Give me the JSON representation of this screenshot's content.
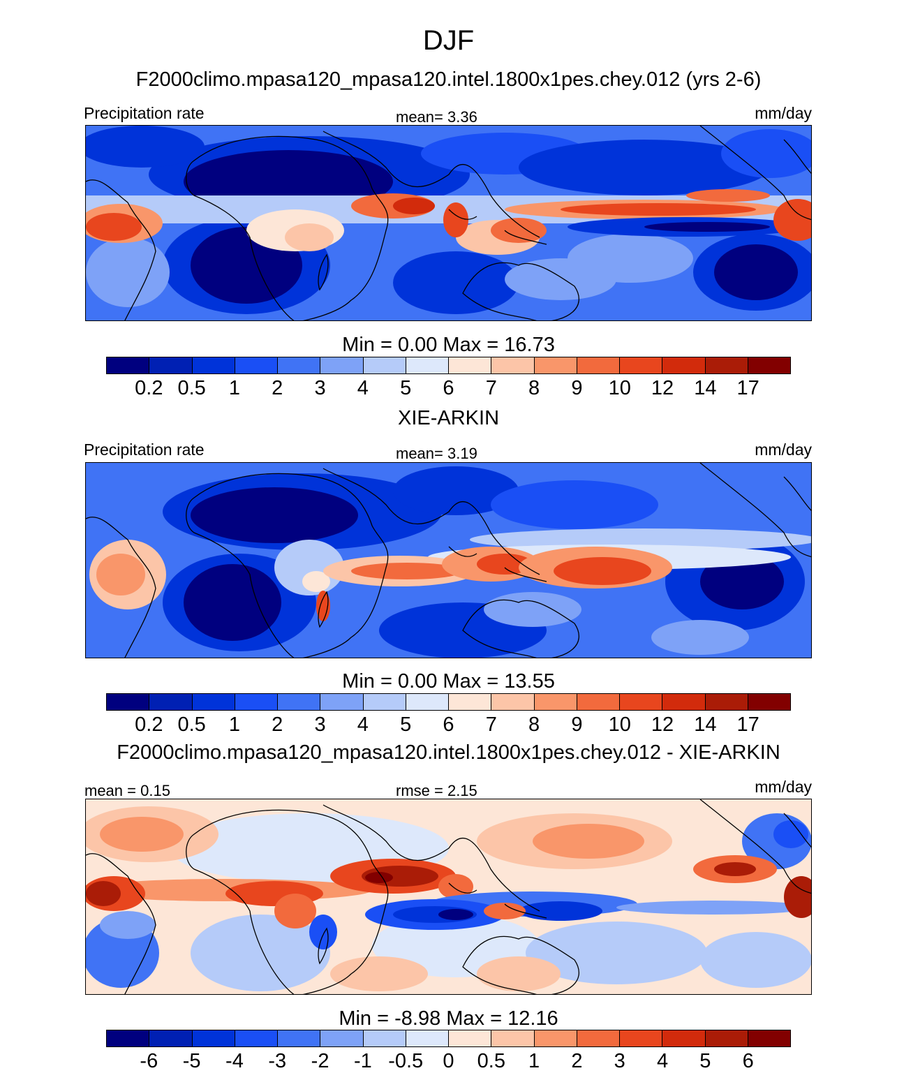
{
  "figure": {
    "season_title": "DJF"
  },
  "colors": {
    "precip_scale": [
      "#00007f",
      "#0020b3",
      "#0033d9",
      "#1a4ff5",
      "#4073f5",
      "#7ea2f7",
      "#b5cbf9",
      "#dde8fb",
      "#fde6d7",
      "#fcc5a8",
      "#f9966a",
      "#f26a3d",
      "#e8461e",
      "#d22b0c",
      "#aa1c07",
      "#820000"
    ],
    "diff_scale": [
      "#00007f",
      "#0020b3",
      "#0033d9",
      "#1a4ff5",
      "#4073f5",
      "#7ea2f7",
      "#b5cbf9",
      "#dde8fb",
      "#fde6d7",
      "#fcc5a8",
      "#f9966a",
      "#f26a3d",
      "#e8461e",
      "#d22b0c",
      "#aa1c07",
      "#820000"
    ]
  },
  "panels": [
    {
      "title": "F2000climo.mpasa120_mpasa120.intel.1800x1pes.chey.012 (yrs 2-6)",
      "left_label": "Precipitation rate",
      "center_label": "mean=   3.36",
      "units": "mm/day",
      "min_max": "Min =   0.00 Max =  16.73",
      "colorbar_ticks": [
        "0.2",
        "0.5",
        "1",
        "2",
        "3",
        "4",
        "5",
        "6",
        "7",
        "8",
        "9",
        "10",
        "12",
        "14",
        "17"
      ]
    },
    {
      "title": "XIE-ARKIN",
      "left_label": "Precipitation rate",
      "center_label": "mean=   3.19",
      "units": "mm/day",
      "min_max": "Min =   0.00 Max =  13.55",
      "colorbar_ticks": [
        "0.2",
        "0.5",
        "1",
        "2",
        "3",
        "4",
        "5",
        "6",
        "7",
        "8",
        "9",
        "10",
        "12",
        "14",
        "17"
      ]
    },
    {
      "title": "F2000climo.mpasa120_mpasa120.intel.1800x1pes.chey.012 - XIE-ARKIN",
      "left_label": "mean =   0.15",
      "center_label": "rmse =   2.15",
      "units": "mm/day",
      "min_max": "Min =  -8.98 Max =  12.16",
      "colorbar_ticks": [
        "-6",
        "-5",
        "-4",
        "-3",
        "-2",
        "-1",
        "-0.5",
        "0",
        "0.5",
        "1",
        "2",
        "3",
        "4",
        "5",
        "6"
      ]
    }
  ]
}
